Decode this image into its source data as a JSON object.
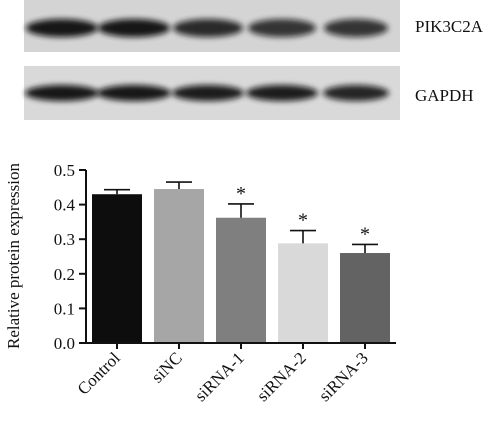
{
  "blots": [
    {
      "label": "PIK3C2A",
      "lanes": 5
    },
    {
      "label": "GAPDH",
      "lanes": 5
    }
  ],
  "chart_data": {
    "type": "bar",
    "categories": [
      "Control",
      "siNC",
      "siRNA-1",
      "siRNA-2",
      "siRNA-3"
    ],
    "values": [
      0.43,
      0.445,
      0.362,
      0.288,
      0.26
    ],
    "errors": [
      0.013,
      0.02,
      0.04,
      0.037,
      0.025
    ],
    "significance": [
      "",
      "",
      "*",
      "*",
      "*"
    ],
    "bar_colors": [
      "#0d0d0d",
      "#a6a6a6",
      "#7f7f7f",
      "#d9d9d9",
      "#636363"
    ],
    "ylabel": "Relative protein expression",
    "ylim": [
      0,
      0.5
    ],
    "yticks": [
      0.0,
      0.1,
      0.2,
      0.3,
      0.4,
      0.5
    ],
    "grid": false
  }
}
